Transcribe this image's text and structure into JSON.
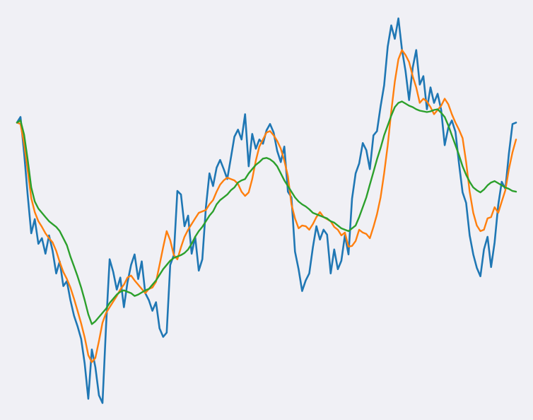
{
  "chart_data": {
    "type": "line",
    "title": "",
    "xlabel": "",
    "ylabel": "",
    "grid": false,
    "legend": "none",
    "background": "#f0f0f5",
    "xlim": [
      0,
      280
    ],
    "ylim": [
      0,
      560
    ],
    "series": [
      {
        "color": "#1f77b4",
        "x": [
          0,
          2,
          4,
          6,
          8,
          10,
          12,
          14,
          16,
          18,
          20,
          22,
          24,
          26,
          28,
          30,
          32,
          34,
          36,
          38,
          40,
          42,
          44,
          46,
          48,
          50,
          52,
          54,
          56,
          58,
          60,
          62,
          64,
          66,
          68,
          70,
          72,
          74,
          76,
          78,
          80,
          82,
          84,
          86,
          88,
          90,
          92,
          94,
          96,
          98,
          100,
          102,
          104,
          106,
          108,
          110,
          112,
          114,
          116,
          118,
          120,
          122,
          124,
          126,
          128,
          130,
          132,
          134,
          136,
          138,
          140,
          142,
          144,
          146,
          148,
          150,
          152,
          154,
          156,
          158,
          160,
          162,
          164,
          166,
          168,
          170,
          172,
          174,
          176,
          178,
          180,
          182,
          184,
          186,
          188,
          190,
          192,
          194,
          196,
          198,
          200,
          202,
          204,
          206,
          208,
          210,
          212,
          214,
          216,
          218,
          220,
          222,
          224,
          226,
          228,
          230,
          232,
          234,
          236,
          238,
          240,
          242,
          244,
          246,
          248,
          250,
          252,
          254,
          256,
          258,
          260,
          262,
          264,
          266,
          268,
          270,
          272,
          274,
          276,
          278,
          280
        ],
        "y": [
          402,
          410,
          359,
          300,
          245,
          265,
          230,
          238,
          216,
          242,
          220,
          188,
          205,
          170,
          177,
          150,
          128,
          113,
          95,
          60,
          10,
          80,
          55,
          15,
          4,
          115,
          208,
          190,
          165,
          182,
          140,
          175,
          200,
          215,
          180,
          205,
          160,
          150,
          135,
          147,
          110,
          98,
          104,
          200,
          214,
          305,
          300,
          255,
          270,
          216,
          240,
          192,
          208,
          282,
          330,
          312,
          338,
          349,
          336,
          322,
          352,
          382,
          392,
          378,
          414,
          340,
          386,
          365,
          378,
          372,
          391,
          400,
          388,
          362,
          346,
          368,
          304,
          296,
          219,
          194,
          163,
          178,
          188,
          225,
          255,
          236,
          250,
          243,
          188,
          222,
          194,
          206,
          242,
          215,
          294,
          330,
          344,
          373,
          363,
          336,
          384,
          390,
          425,
          455,
          510,
          540,
          521,
          550,
          506,
          475,
          434,
          480,
          505,
          456,
          468,
          421,
          452,
          430,
          443,
          420,
          370,
          395,
          405,
          389,
          344,
          303,
          288,
          242,
          215,
          196,
          184,
          222,
          240,
          197,
          232,
          285,
          318,
          308,
          358,
          400,
          402
        ]
      },
      {
        "color": "#ff7f0e",
        "x": [
          0,
          2,
          4,
          6,
          8,
          10,
          12,
          14,
          16,
          18,
          20,
          22,
          24,
          26,
          28,
          30,
          32,
          34,
          36,
          38,
          40,
          42,
          44,
          46,
          48,
          50,
          52,
          54,
          56,
          58,
          60,
          62,
          64,
          66,
          68,
          70,
          72,
          74,
          76,
          78,
          80,
          82,
          84,
          86,
          88,
          90,
          92,
          94,
          96,
          98,
          100,
          102,
          104,
          106,
          108,
          110,
          112,
          114,
          116,
          118,
          120,
          122,
          124,
          126,
          128,
          130,
          132,
          134,
          136,
          138,
          140,
          142,
          144,
          146,
          148,
          150,
          152,
          154,
          156,
          158,
          160,
          162,
          164,
          166,
          168,
          170,
          172,
          174,
          176,
          178,
          180,
          182,
          184,
          186,
          188,
          190,
          192,
          194,
          196,
          198,
          200,
          202,
          204,
          206,
          208,
          210,
          212,
          214,
          216,
          218,
          220,
          222,
          224,
          226,
          228,
          230,
          232,
          234,
          236,
          238,
          240,
          242,
          244,
          246,
          248,
          250,
          252,
          254,
          256,
          258,
          260,
          262,
          264,
          266,
          268,
          270,
          272,
          274,
          276,
          278,
          280
        ],
        "y": [
          402,
          400,
          372,
          335,
          295,
          275,
          262,
          254,
          245,
          238,
          232,
          220,
          204,
          190,
          180,
          168,
          152,
          135,
          117,
          97,
          72,
          62,
          68,
          92,
          118,
          132,
          140,
          148,
          156,
          165,
          172,
          182,
          185,
          178,
          172,
          166,
          160,
          166,
          168,
          176,
          200,
          225,
          248,
          235,
          214,
          208,
          225,
          240,
          250,
          258,
          266,
          274,
          276,
          278,
          286,
          292,
          304,
          314,
          320,
          324,
          322,
          320,
          315,
          304,
          298,
          303,
          322,
          348,
          368,
          378,
          388,
          390,
          384,
          376,
          365,
          348,
          326,
          286,
          266,
          252,
          256,
          255,
          250,
          258,
          268,
          275,
          268,
          265,
          262,
          254,
          250,
          242,
          246,
          226,
          227,
          234,
          250,
          246,
          244,
          238,
          254,
          272,
          296,
          330,
          370,
          418,
          460,
          492,
          505,
          498,
          488,
          468,
          452,
          430,
          436,
          432,
          424,
          414,
          420,
          426,
          436,
          428,
          414,
          402,
          392,
          380,
          346,
          304,
          274,
          256,
          248,
          250,
          266,
          268,
          282,
          274,
          290,
          306,
          336,
          360,
          378
        ]
      },
      {
        "color": "#2ca02c",
        "x": [
          0,
          2,
          4,
          6,
          8,
          10,
          12,
          14,
          16,
          18,
          20,
          22,
          24,
          26,
          28,
          30,
          32,
          34,
          36,
          38,
          40,
          42,
          44,
          46,
          48,
          50,
          52,
          54,
          56,
          58,
          60,
          62,
          64,
          66,
          68,
          70,
          72,
          74,
          76,
          78,
          80,
          82,
          84,
          86,
          88,
          90,
          92,
          94,
          96,
          98,
          100,
          102,
          104,
          106,
          108,
          110,
          112,
          114,
          116,
          118,
          120,
          122,
          124,
          126,
          128,
          130,
          132,
          134,
          136,
          138,
          140,
          142,
          144,
          146,
          148,
          150,
          152,
          154,
          156,
          158,
          160,
          162,
          164,
          166,
          168,
          170,
          172,
          174,
          176,
          178,
          180,
          182,
          184,
          186,
          188,
          190,
          192,
          194,
          196,
          198,
          200,
          202,
          204,
          206,
          208,
          210,
          212,
          214,
          216,
          218,
          220,
          222,
          224,
          226,
          228,
          230,
          232,
          234,
          236,
          238,
          240,
          242,
          244,
          246,
          248,
          250,
          252,
          254,
          256,
          258,
          260,
          262,
          264,
          266,
          268,
          270,
          272,
          274,
          276,
          278,
          280
        ],
        "y": [
          402,
          405,
          385,
          350,
          310,
          290,
          280,
          274,
          268,
          262,
          258,
          254,
          248,
          238,
          228,
          212,
          198,
          184,
          168,
          150,
          130,
          116,
          120,
          126,
          132,
          138,
          146,
          152,
          158,
          162,
          164,
          162,
          160,
          156,
          158,
          161,
          164,
          166,
          172,
          178,
          186,
          194,
          200,
          206,
          210,
          212,
          214,
          217,
          222,
          230,
          240,
          248,
          254,
          262,
          270,
          276,
          286,
          292,
          296,
          300,
          306,
          310,
          317,
          320,
          322,
          330,
          336,
          342,
          346,
          351,
          352,
          350,
          346,
          340,
          330,
          320,
          312,
          304,
          296,
          290,
          286,
          283,
          279,
          274,
          272,
          270,
          268,
          266,
          262,
          260,
          256,
          252,
          250,
          248,
          252,
          256,
          268,
          282,
          296,
          314,
          332,
          350,
          366,
          384,
          398,
          412,
          424,
          430,
          432,
          429,
          426,
          424,
          421,
          419,
          418,
          417,
          418,
          420,
          421,
          416,
          410,
          398,
          384,
          370,
          356,
          340,
          328,
          318,
          310,
          306,
          303,
          307,
          313,
          317,
          319,
          316,
          313,
          310,
          308,
          305,
          304
        ]
      }
    ]
  }
}
